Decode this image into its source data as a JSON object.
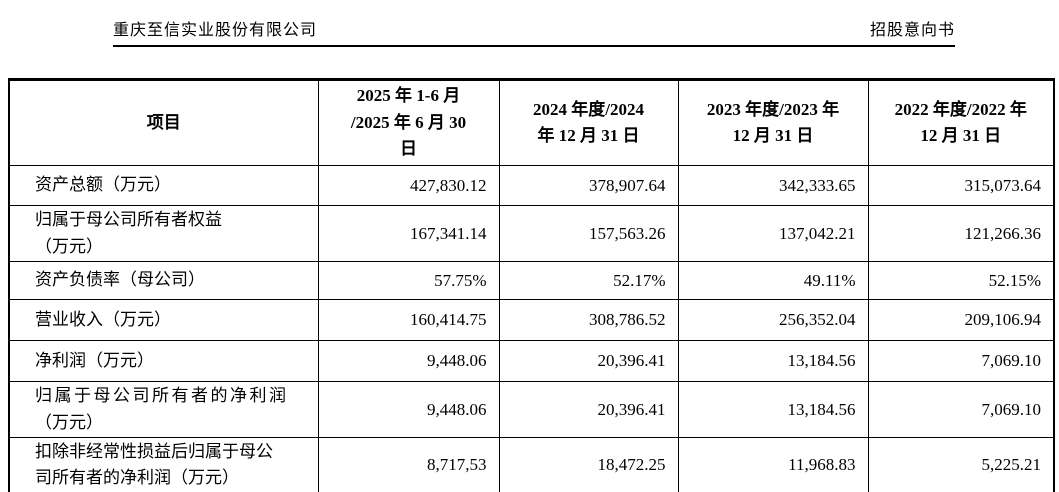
{
  "page_header": {
    "left": "重庆至信实业股份有限公司",
    "right": "招股意向书"
  },
  "table": {
    "columns": [
      {
        "label": "项目"
      },
      {
        "label": "2025 年 1-6 月\n/2025 年 6 月 30\n日"
      },
      {
        "label": "2024 年度/2024\n年 12 月 31 日"
      },
      {
        "label": "2023 年度/2023 年\n12 月 31 日"
      },
      {
        "label": "2022 年度/2022 年\n12 月 31 日"
      }
    ],
    "rows": [
      {
        "label": "资产总额（万元）",
        "values": [
          "427,830.12",
          "378,907.64",
          "342,333.65",
          "315,073.64"
        ]
      },
      {
        "label": "归属于母公司所有者权益\n（万元）",
        "values": [
          "167,341.14",
          "157,563.26",
          "137,042.21",
          "121,266.36"
        ]
      },
      {
        "label": "资产负债率（母公司）",
        "values": [
          "57.75%",
          "52.17%",
          "49.11%",
          "52.15%"
        ]
      },
      {
        "label": "营业收入（万元）",
        "values": [
          "160,414.75",
          "308,786.52",
          "256,352.04",
          "209,106.94"
        ]
      },
      {
        "label": "净利润（万元）",
        "values": [
          "9,448.06",
          "20,396.41",
          "13,184.56",
          "7,069.10"
        ]
      },
      {
        "label": "归属于母公司所有者的净利润\n（万元）",
        "values": [
          "9,448.06",
          "20,396.41",
          "13,184.56",
          "7,069.10"
        ]
      },
      {
        "label": "扣除非经常性损益后归属于母公\n司所有者的净利润（万元）",
        "values": [
          "8,717,53",
          "18,472.25",
          "11,968.83",
          "5,225.21"
        ]
      }
    ]
  }
}
